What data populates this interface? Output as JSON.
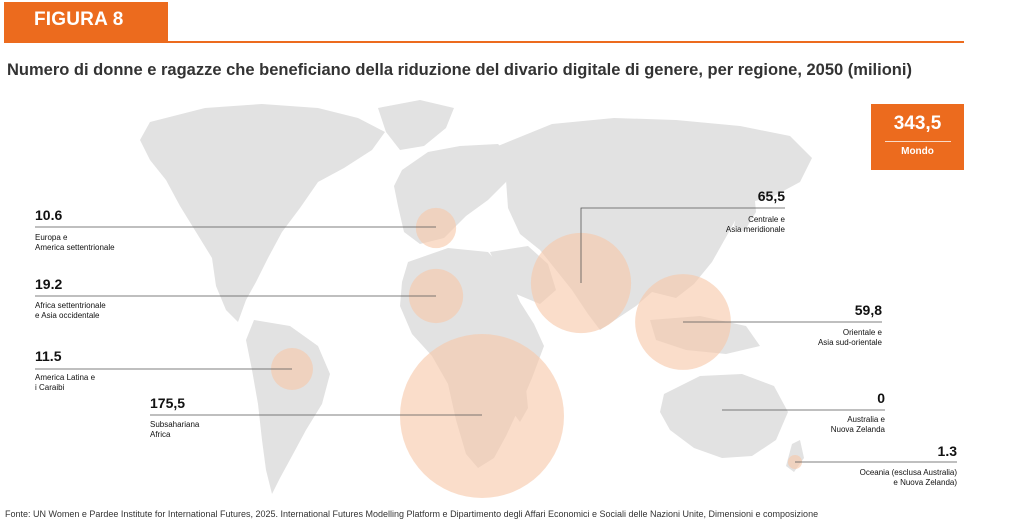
{
  "header": {
    "figure_label": "FIGURA 8",
    "title": "Numero di donne e ragazze che beneficiano della riduzione del divario digitale di genere, per regione, 2050 (milioni)"
  },
  "world": {
    "value": "343,5",
    "label": "Mondo"
  },
  "colors": {
    "accent": "#ec6b1e",
    "bubble": "#f7c8a9",
    "map": "#e2e2e2"
  },
  "chart_data": {
    "type": "bubble-map",
    "unit": "milioni",
    "regions": [
      {
        "id": "europe",
        "value_label": "10.6",
        "value": 10.6,
        "name_lines": [
          "Europa e",
          "America settentrionale"
        ]
      },
      {
        "id": "mena",
        "value_label": "19.2",
        "value": 19.2,
        "name_lines": [
          "Africa settentrionale",
          "e Asia occidentale"
        ]
      },
      {
        "id": "latam",
        "value_label": "11.5",
        "value": 11.5,
        "name_lines": [
          "America Latina e",
          "i Caraibi"
        ]
      },
      {
        "id": "ssa",
        "value_label": "175,5",
        "value": 175.5,
        "name_lines": [
          "Subsahariana",
          "Africa"
        ]
      },
      {
        "id": "south-asia",
        "value_label": "65,5",
        "value": 65.5,
        "name_lines": [
          "Centrale e",
          "Asia meridionale"
        ]
      },
      {
        "id": "east-asia",
        "value_label": "59,8",
        "value": 59.8,
        "name_lines": [
          "Orientale e",
          "Asia sud-orientale"
        ]
      },
      {
        "id": "australia",
        "value_label": "0",
        "value": 0,
        "name_lines": [
          "Australia e",
          "Nuova Zelanda"
        ]
      },
      {
        "id": "oceania",
        "value_label": "1.3",
        "value": 1.3,
        "name_lines": [
          "Oceania (esclusa Australia)",
          "e Nuova Zelanda)"
        ]
      }
    ]
  },
  "source": "Fonte: UN Women e Pardee Institute for International Futures, 2025. International Futures Modelling Platform e Dipartimento degli Affari Economici e Sociali delle Nazioni Unite, Dimensioni e composizione"
}
